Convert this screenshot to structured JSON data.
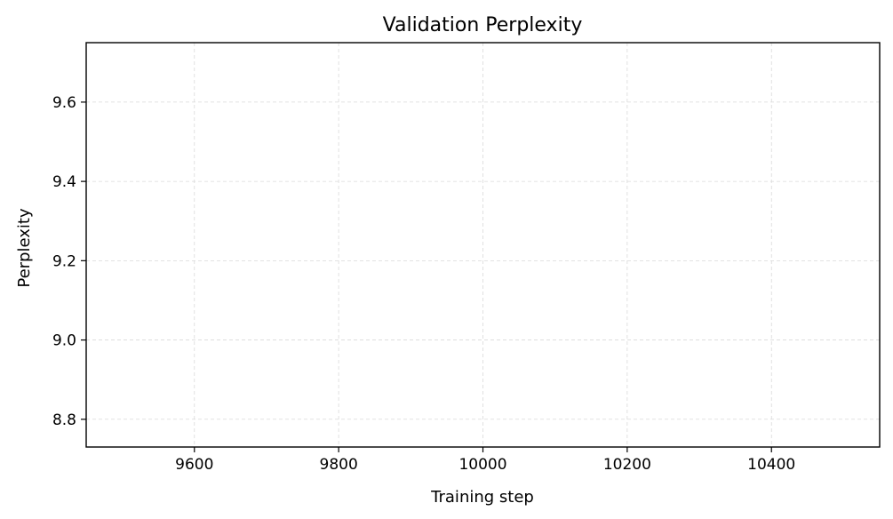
{
  "chart_data": {
    "type": "line",
    "title": "Validation Perplexity",
    "xlabel": "Training step",
    "ylabel": "Perplexity",
    "xlim": [
      9450,
      10550
    ],
    "ylim": [
      8.73,
      9.75
    ],
    "xticks": [
      9600,
      9800,
      10000,
      10200,
      10400
    ],
    "xtick_labels": [
      "9600",
      "9800",
      "10000",
      "10200",
      "10400"
    ],
    "yticks": [
      8.8,
      9.0,
      9.2,
      9.4,
      9.6
    ],
    "ytick_labels": [
      "8.8",
      "9.0",
      "9.2",
      "9.4",
      "9.6"
    ],
    "grid": true,
    "series": [
      {
        "x": [],
        "values": [],
        "color": "#1f77b4"
      }
    ],
    "colors": {
      "frame": "#000000",
      "grid": "#d9d9d9",
      "background": "#ffffff"
    }
  }
}
